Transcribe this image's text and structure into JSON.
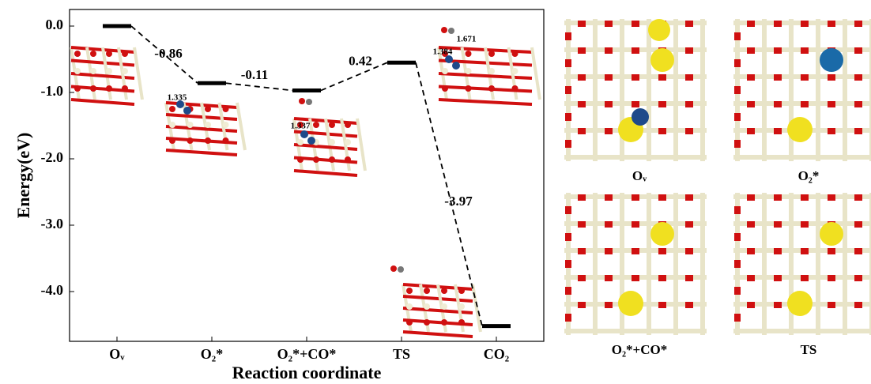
{
  "chart_data": {
    "type": "energy_profile",
    "y_label": "Energy(eV)",
    "x_label": "Reaction coordinate",
    "categories": [
      "Oᵥ",
      "O₂*",
      "O₂*+CO*",
      "TS",
      "CO₂"
    ],
    "values": [
      0.0,
      -0.86,
      -0.97,
      -0.55,
      -4.52
    ],
    "color": "#000000",
    "step_labels": [
      "-0.86",
      "-0.11",
      "0.42",
      "-3.97"
    ],
    "ylim": [
      -4.75,
      0.25
    ],
    "yticks": [
      {
        "value": 0,
        "label": "0.0"
      },
      {
        "value": -1,
        "label": "-1.0"
      },
      {
        "value": -2,
        "label": "-2.0"
      },
      {
        "value": -3,
        "label": "-3.0"
      },
      {
        "value": -4,
        "label": "-4.0"
      }
    ],
    "structure_labels": [
      "1.335",
      "1.337",
      "1.671",
      "1.384"
    ],
    "panel_labels": [
      "Oᵥ",
      "O₂*",
      "O₂*+CO*",
      "TS"
    ]
  }
}
